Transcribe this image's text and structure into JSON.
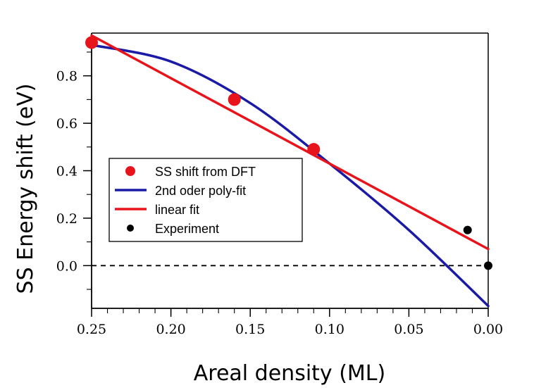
{
  "chart_data": {
    "type": "line",
    "xlabel": "Areal density (ML)",
    "ylabel": "SS Energy shift (eV)",
    "x_reversed": true,
    "xlim": [
      0.25,
      0.0
    ],
    "ylim": [
      -0.18,
      0.98
    ],
    "x_ticks": [
      0.25,
      0.2,
      0.15,
      0.1,
      0.05,
      0.0
    ],
    "x_tick_labels": [
      "0.25",
      "0.20",
      "0.15",
      "0.10",
      "0.05",
      "0.00"
    ],
    "y_ticks": [
      0.0,
      0.2,
      0.4,
      0.6,
      0.8
    ],
    "y_tick_labels": [
      "0.0",
      "0.2",
      "0.4",
      "0.6",
      "0.8"
    ],
    "grid": false,
    "legend_position": "center-left",
    "reference_line": {
      "y": 0.0,
      "style": "dashed",
      "color": "#000000"
    },
    "series": [
      {
        "name": "SS shift from DFT",
        "kind": "scatter",
        "color": "#e8141c",
        "marker": "circle-large",
        "x": [
          0.25,
          0.16,
          0.11
        ],
        "y": [
          0.94,
          0.7,
          0.49
        ]
      },
      {
        "name": "2nd oder poly-fit",
        "kind": "line",
        "color": "#1a1aa6",
        "x": [
          0.25,
          0.2,
          0.15,
          0.1,
          0.05,
          0.0
        ],
        "y": [
          0.93,
          0.86,
          0.685,
          0.43,
          0.15,
          -0.17
        ]
      },
      {
        "name": "linear fit",
        "kind": "line",
        "color": "#e8141c",
        "x": [
          0.25,
          0.0
        ],
        "y": [
          0.97,
          0.07
        ]
      },
      {
        "name": "Experiment",
        "kind": "scatter",
        "color": "#000000",
        "marker": "circle-small",
        "x": [
          0.013,
          0.0
        ],
        "y": [
          0.15,
          0.0
        ]
      }
    ]
  }
}
